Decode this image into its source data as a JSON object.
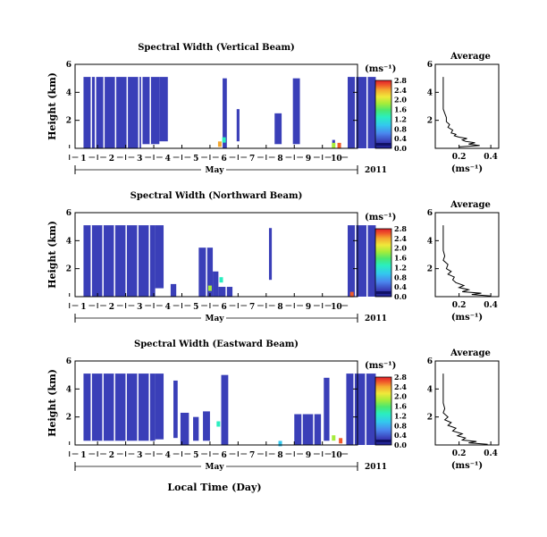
{
  "figure": {
    "month_label": "May",
    "year_label": "2011",
    "xlabel": "Local Time (Day)",
    "ylabel": "Height (km)",
    "colorbar_unit": "(ms⁻¹)",
    "profile_title": "Average",
    "profile_xlabel": "(ms⁻¹)"
  },
  "chart_data": [
    {
      "type": "heatmap",
      "title": "Spectral Width (Vertical Beam)",
      "xlabel": "Local Time (Day)",
      "ylabel": "Height (km)",
      "x_ticks": [
        "1",
        "2",
        "3",
        "4",
        "5",
        "6",
        "7",
        "8",
        "9",
        "10"
      ],
      "y_ticks": [
        "2",
        "4",
        "6"
      ],
      "ylim": [
        0,
        6
      ],
      "colorbar": {
        "label": "(ms⁻¹)",
        "ticks": [
          "0.0",
          "0.4",
          "0.8",
          "1.2",
          "1.6",
          "2.0",
          "2.4",
          "2.8"
        ],
        "range": [
          0,
          2.8
        ]
      },
      "blocks": [
        {
          "start": 0.0,
          "end": 0.4,
          "top": 5.1,
          "base": 0.0
        },
        {
          "start": 0.45,
          "end": 2.05,
          "top": 5.1,
          "base": 0.0
        },
        {
          "start": 2.1,
          "end": 2.7,
          "top": 5.1,
          "base": 0.3
        },
        {
          "start": 2.7,
          "end": 3.0,
          "top": 5.1,
          "base": 0.5
        },
        {
          "start": 4.95,
          "end": 5.1,
          "top": 5.0,
          "base": 0.0
        },
        {
          "start": 5.45,
          "end": 5.55,
          "top": 2.8,
          "base": 0.5
        },
        {
          "start": 6.8,
          "end": 7.05,
          "top": 2.5,
          "base": 0.3
        },
        {
          "start": 7.45,
          "end": 7.7,
          "top": 5.0,
          "base": 0.3
        },
        {
          "start": 8.85,
          "end": 8.95,
          "top": 0.6,
          "base": 0.0
        },
        {
          "start": 9.4,
          "end": 10.4,
          "top": 5.1,
          "base": 0.0
        }
      ],
      "hotspots": [
        {
          "day": 4.85,
          "height": 0.3,
          "value": 2.2
        },
        {
          "day": 5.0,
          "height": 0.6,
          "value": 1.2
        },
        {
          "day": 8.9,
          "height": 0.2,
          "value": 1.6
        },
        {
          "day": 9.1,
          "height": 0.2,
          "value": 2.6
        }
      ],
      "profile": {
        "title": "Average",
        "xlabel": "(ms⁻¹)",
        "x_ticks": [
          "0.2",
          "0.4"
        ],
        "xlim": [
          0.05,
          0.45
        ],
        "y_ticks": [
          "2",
          "4",
          "6"
        ],
        "ylim": [
          0,
          6
        ],
        "points": [
          [
            0.2,
            0.1
          ],
          [
            0.33,
            0.2
          ],
          [
            0.26,
            0.3
          ],
          [
            0.3,
            0.4
          ],
          [
            0.24,
            0.5
          ],
          [
            0.22,
            0.6
          ],
          [
            0.25,
            0.7
          ],
          [
            0.2,
            0.8
          ],
          [
            0.17,
            0.9
          ],
          [
            0.18,
            1.0
          ],
          [
            0.15,
            1.1
          ],
          [
            0.16,
            1.3
          ],
          [
            0.13,
            1.5
          ],
          [
            0.14,
            1.7
          ],
          [
            0.12,
            1.9
          ],
          [
            0.12,
            2.2
          ],
          [
            0.11,
            2.5
          ],
          [
            0.1,
            2.8
          ],
          [
            0.1,
            3.2
          ],
          [
            0.1,
            3.6
          ],
          [
            0.1,
            4.0
          ],
          [
            0.1,
            4.6
          ],
          [
            0.1,
            5.1
          ]
        ]
      }
    },
    {
      "type": "heatmap",
      "title": "Spectral Width (Northward Beam)",
      "xlabel": "Local Time (Day)",
      "ylabel": "Height (km)",
      "x_ticks": [
        "1",
        "2",
        "3",
        "4",
        "5",
        "6",
        "7",
        "8",
        "9",
        "10"
      ],
      "y_ticks": [
        "2",
        "4",
        "6"
      ],
      "ylim": [
        0,
        6
      ],
      "colorbar": {
        "label": "(ms⁻¹)",
        "ticks": [
          "0.0",
          "0.4",
          "0.8",
          "1.2",
          "1.6",
          "2.0",
          "2.4",
          "2.8"
        ],
        "range": [
          0,
          2.8
        ]
      },
      "blocks": [
        {
          "start": 0.0,
          "end": 2.55,
          "top": 5.1,
          "base": 0.0
        },
        {
          "start": 2.55,
          "end": 2.85,
          "top": 5.1,
          "base": 0.6
        },
        {
          "start": 3.1,
          "end": 3.3,
          "top": 0.9,
          "base": 0.0
        },
        {
          "start": 4.1,
          "end": 4.6,
          "top": 3.5,
          "base": 0.0
        },
        {
          "start": 4.6,
          "end": 4.8,
          "top": 1.8,
          "base": 0.0
        },
        {
          "start": 4.8,
          "end": 5.3,
          "top": 0.7,
          "base": 0.0
        },
        {
          "start": 6.6,
          "end": 6.7,
          "top": 4.9,
          "base": 1.2
        },
        {
          "start": 9.4,
          "end": 10.4,
          "top": 5.1,
          "base": 0.0
        }
      ],
      "hotspots": [
        {
          "day": 4.5,
          "height": 0.6,
          "value": 1.6
        },
        {
          "day": 4.9,
          "height": 1.2,
          "value": 1.2
        },
        {
          "day": 9.55,
          "height": 0.15,
          "value": 2.6
        }
      ],
      "profile": {
        "title": "Average",
        "xlabel": "(ms⁻¹)",
        "x_ticks": [
          "0.2",
          "0.4"
        ],
        "xlim": [
          0.05,
          0.45
        ],
        "y_ticks": [
          "2",
          "4",
          "6"
        ],
        "ylim": [
          0,
          6
        ],
        "points": [
          [
            0.4,
            0.05
          ],
          [
            0.28,
            0.15
          ],
          [
            0.34,
            0.25
          ],
          [
            0.22,
            0.35
          ],
          [
            0.26,
            0.5
          ],
          [
            0.2,
            0.65
          ],
          [
            0.23,
            0.8
          ],
          [
            0.18,
            1.0
          ],
          [
            0.16,
            1.2
          ],
          [
            0.17,
            1.4
          ],
          [
            0.13,
            1.6
          ],
          [
            0.15,
            1.8
          ],
          [
            0.12,
            2.0
          ],
          [
            0.13,
            2.3
          ],
          [
            0.1,
            2.6
          ],
          [
            0.11,
            2.9
          ],
          [
            0.1,
            3.3
          ],
          [
            0.1,
            3.8
          ],
          [
            0.1,
            4.3
          ],
          [
            0.1,
            4.8
          ],
          [
            0.1,
            5.1
          ]
        ]
      }
    },
    {
      "type": "heatmap",
      "title": "Spectral Width (Eastward Beam)",
      "xlabel": "Local Time (Day)",
      "ylabel": "Height (km)",
      "x_ticks": [
        "1",
        "2",
        "3",
        "4",
        "5",
        "6",
        "7",
        "8",
        "9",
        "10"
      ],
      "y_ticks": [
        "2",
        "4",
        "6"
      ],
      "ylim": [
        0,
        6
      ],
      "colorbar": {
        "label": "(ms⁻¹)",
        "ticks": [
          "0.0",
          "0.4",
          "0.8",
          "1.2",
          "1.6",
          "2.0",
          "2.4",
          "2.8"
        ],
        "range": [
          0,
          2.8
        ]
      },
      "blocks": [
        {
          "start": 0.0,
          "end": 2.55,
          "top": 5.1,
          "base": 0.3
        },
        {
          "start": 2.55,
          "end": 2.85,
          "top": 5.1,
          "base": 0.4
        },
        {
          "start": 3.2,
          "end": 3.35,
          "top": 4.6,
          "base": 0.5
        },
        {
          "start": 3.45,
          "end": 3.75,
          "top": 2.3,
          "base": 0.0
        },
        {
          "start": 3.9,
          "end": 4.1,
          "top": 2.0,
          "base": 0.3
        },
        {
          "start": 4.25,
          "end": 4.5,
          "top": 2.4,
          "base": 0.3
        },
        {
          "start": 4.9,
          "end": 5.15,
          "top": 5.0,
          "base": 0.0
        },
        {
          "start": 7.5,
          "end": 8.45,
          "top": 2.2,
          "base": 0.0
        },
        {
          "start": 8.55,
          "end": 8.75,
          "top": 4.8,
          "base": 0.3
        },
        {
          "start": 9.35,
          "end": 10.4,
          "top": 5.1,
          "base": 0.0
        }
      ],
      "hotspots": [
        {
          "day": 4.8,
          "height": 1.5,
          "value": 1.2
        },
        {
          "day": 7.0,
          "height": 0.1,
          "value": 0.8
        },
        {
          "day": 8.9,
          "height": 0.5,
          "value": 1.6
        },
        {
          "day": 9.15,
          "height": 0.3,
          "value": 2.6
        }
      ],
      "profile": {
        "title": "Average",
        "xlabel": "(ms⁻¹)",
        "x_ticks": [
          "0.2",
          "0.4"
        ],
        "xlim": [
          0.05,
          0.45
        ],
        "y_ticks": [
          "2",
          "4",
          "6"
        ],
        "ylim": [
          0,
          6
        ],
        "points": [
          [
            0.38,
            0.05
          ],
          [
            0.26,
            0.15
          ],
          [
            0.31,
            0.25
          ],
          [
            0.22,
            0.35
          ],
          [
            0.24,
            0.5
          ],
          [
            0.19,
            0.65
          ],
          [
            0.22,
            0.8
          ],
          [
            0.16,
            1.0
          ],
          [
            0.18,
            1.2
          ],
          [
            0.13,
            1.4
          ],
          [
            0.15,
            1.6
          ],
          [
            0.11,
            1.8
          ],
          [
            0.13,
            2.0
          ],
          [
            0.1,
            2.3
          ],
          [
            0.11,
            2.6
          ],
          [
            0.1,
            3.0
          ],
          [
            0.1,
            3.5
          ],
          [
            0.1,
            4.0
          ],
          [
            0.1,
            4.6
          ],
          [
            0.1,
            5.1
          ]
        ]
      }
    }
  ],
  "colors": {
    "blue": "#3a3fb8",
    "colormap": [
      "#1a1a88",
      "#3a3fb8",
      "#4a86ee",
      "#33c8ee",
      "#2aeec0",
      "#4ae870",
      "#a6ec3a",
      "#f0e83a",
      "#f4a830",
      "#f05a2a",
      "#e0202a"
    ]
  }
}
